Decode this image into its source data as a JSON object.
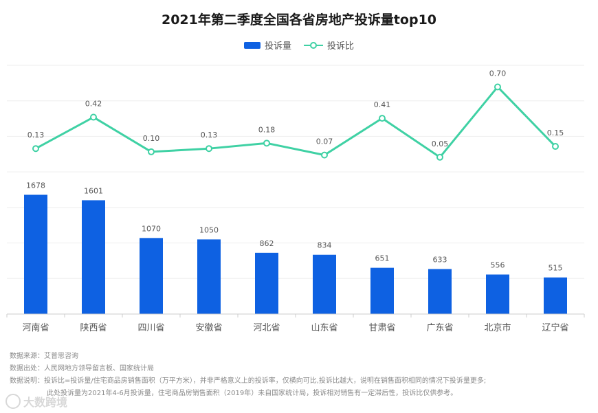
{
  "chart_data": {
    "type": "bar",
    "title": "2021年第二季度全国各省房地产投诉量top10",
    "categories": [
      "河南省",
      "陕西省",
      "四川省",
      "安徽省",
      "河北省",
      "山东省",
      "甘肃省",
      "广东省",
      "北京市",
      "辽宁省"
    ],
    "series": [
      {
        "name": "投诉量",
        "type": "bar",
        "color": "#0e61e2",
        "values": [
          1678,
          1601,
          1070,
          1050,
          862,
          834,
          651,
          633,
          556,
          515
        ],
        "labels": [
          "1678",
          "1601",
          "1070",
          "1050",
          "862",
          "834",
          "651",
          "633",
          "556",
          "515"
        ]
      },
      {
        "name": "投诉比",
        "type": "line",
        "color": "#3fd1a4",
        "values": [
          0.13,
          0.42,
          0.1,
          0.13,
          0.18,
          0.07,
          0.41,
          0.05,
          0.7,
          0.15
        ],
        "labels": [
          "0.13",
          "0.42",
          "0.10",
          "0.13",
          "0.18",
          "0.07",
          "0.41",
          "0.05",
          "0.70",
          "0.15"
        ]
      }
    ],
    "bar_axis_max": 3500,
    "line_axis": [
      -1.4,
      0.9
    ],
    "grid": true,
    "legend": "top-center"
  },
  "notes": {
    "source_label": "数据来源：",
    "source": "艾普思咨询",
    "origin_label": "数据出处：",
    "origin": "人民网地方领导留言板、国家统计局",
    "desc_label": "数据说明：",
    "desc1": "投诉比=投诉量/住宅商品房销售面积（万平方米），并非严格意义上的投诉率，仅横向可比,投诉比越大，说明在销售面积相同的情况下投诉量更多;",
    "desc2": "此处投诉量为2021年4-6月投诉量，住宅商品房销售面积（2019年）未自国家统计局，投诉相对销售有一定滞后性，投诉比仅供参考。"
  },
  "watermark": "大数跨境"
}
